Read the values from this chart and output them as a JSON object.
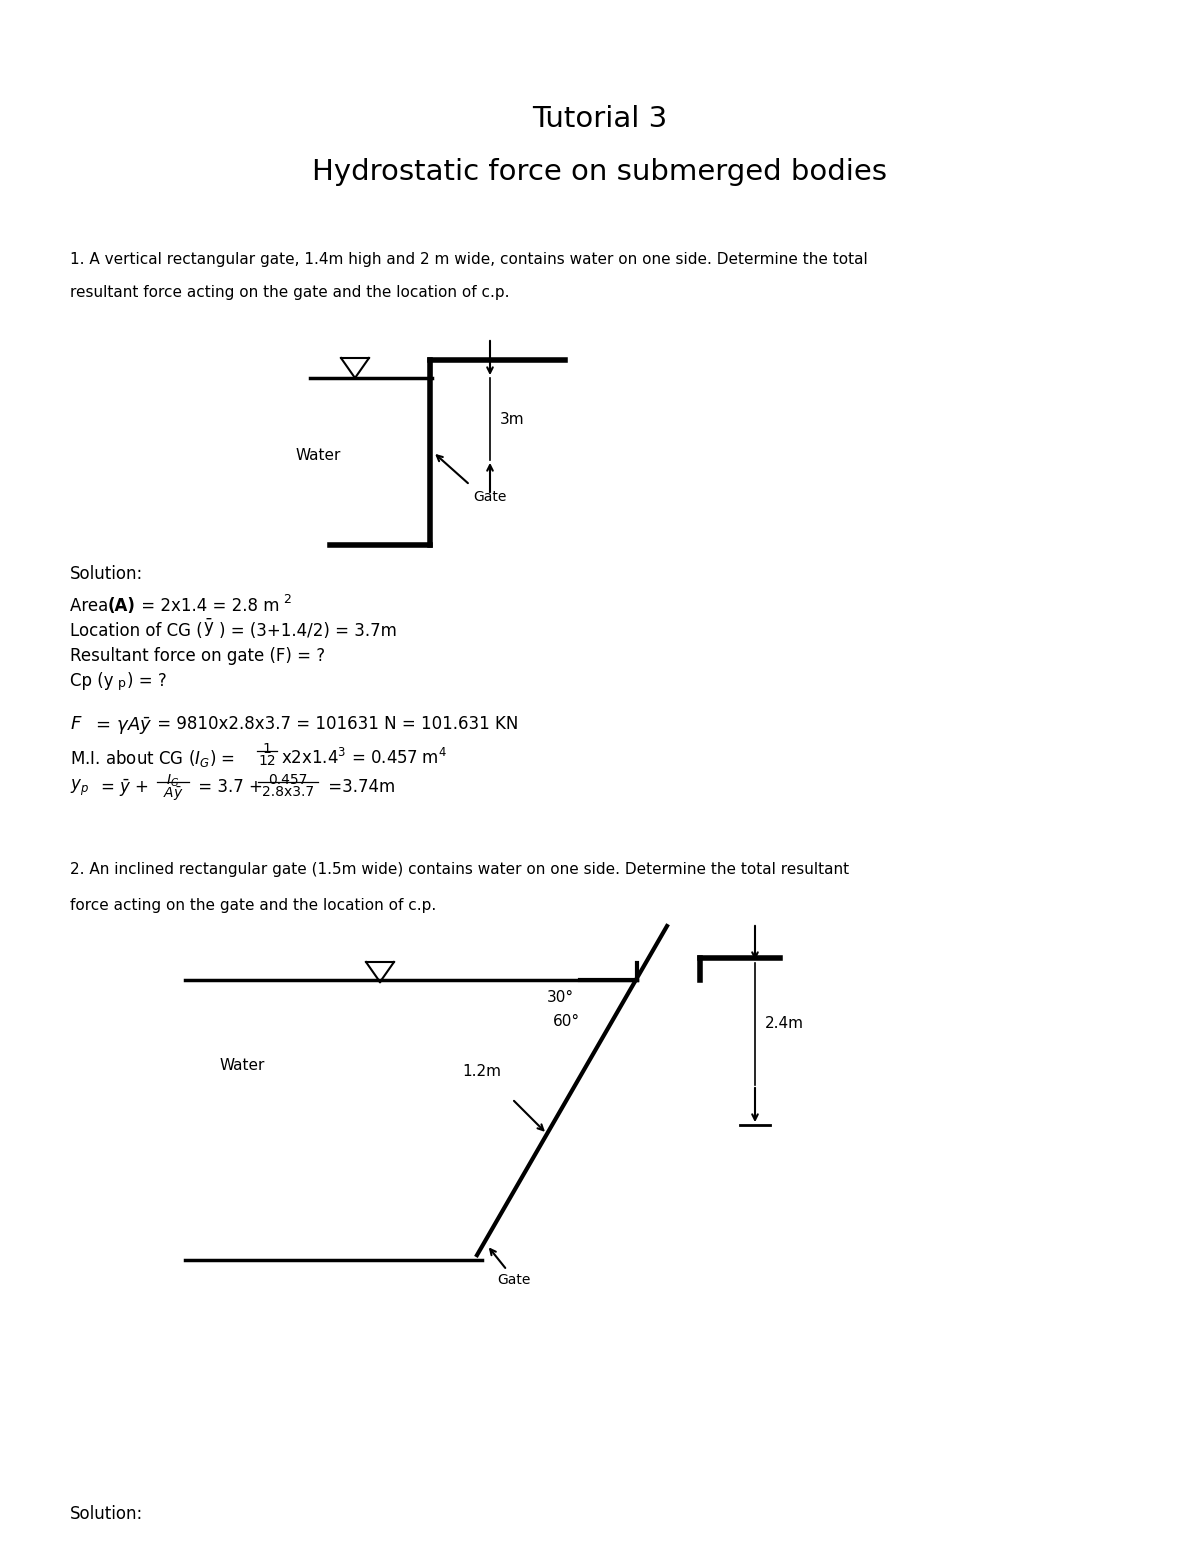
{
  "title1": "Tutorial 3",
  "title2": "Hydrostatic force on submerged bodies",
  "q1_text1": "1. A vertical rectangular gate, 1.4m high and 2 m wide, contains water on one side. Determine the total",
  "q1_text2": "resultant force acting on the gate and the location of c.p.",
  "solution1_label": "Solution:",
  "q2_text1": "2. An inclined rectangular gate (1.5m wide) contains water on one side. Determine the total resultant",
  "q2_text2": "force acting on the gate and the location of c.p.",
  "solution2_label": "Solution:",
  "bg_color": "#ffffff",
  "text_color": "#000000"
}
